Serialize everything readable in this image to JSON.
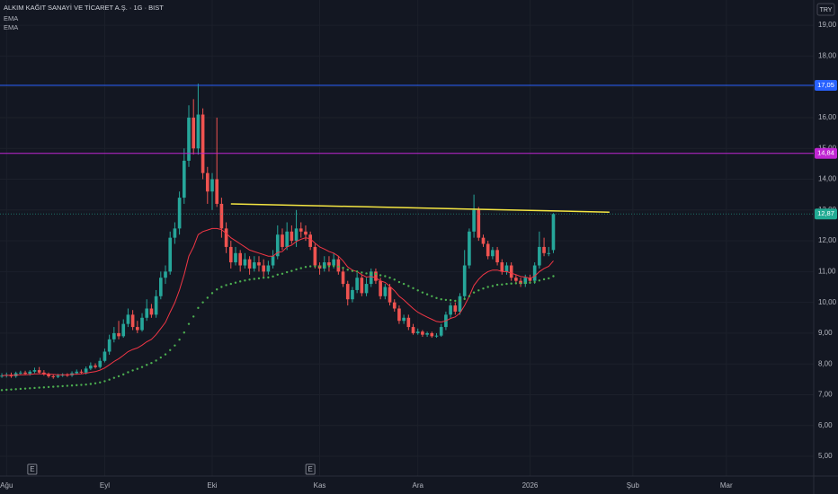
{
  "chart_data": {
    "type": "candlestick",
    "title": "ALKIM KAĞIT SANAYİ VE TİCARET A.Ş. · 1G · BIST",
    "currency": "TRY",
    "up_color": "#26a69a",
    "down_color": "#ef5350",
    "candles": {
      "open": [
        7.6,
        7.62,
        7.65,
        7.6,
        7.7,
        7.72,
        7.68,
        7.75,
        7.8,
        7.72,
        7.66,
        7.6,
        7.58,
        7.62,
        7.65,
        7.63,
        7.7,
        7.75,
        7.72,
        7.85,
        7.95,
        7.9,
        8.1,
        8.4,
        8.8,
        9.0,
        8.9,
        9.3,
        9.6,
        9.2,
        9.1,
        9.5,
        9.8,
        9.6,
        10.2,
        10.8,
        11.0,
        12.1,
        12.4,
        13.4,
        14.6,
        16.0,
        15.0,
        16.1,
        14.2,
        13.6,
        14.0,
        13.2,
        12.4,
        11.8,
        11.3,
        11.6,
        11.2,
        11.4,
        11.1,
        11.3,
        11.2,
        11.0,
        11.2,
        11.5,
        12.2,
        11.8,
        12.3,
        12.0,
        12.4,
        12.3,
        12.2,
        11.8,
        11.2,
        11.1,
        11.3,
        11.2,
        11.4,
        11.0,
        10.6,
        10.1,
        10.4,
        10.8,
        10.3,
        10.6,
        11.0,
        10.7,
        10.2,
        10.5,
        10.0,
        9.8,
        9.4,
        9.5,
        9.2,
        9.0,
        9.05,
        8.95,
        9.0,
        8.9,
        8.92,
        9.2,
        9.6,
        9.9,
        9.7,
        10.2,
        11.2,
        12.3,
        13.0,
        12.1,
        11.9,
        11.5,
        11.7,
        11.3,
        11.0,
        11.2,
        10.8,
        10.7,
        10.6,
        10.8,
        10.7,
        11.2,
        11.8,
        11.6,
        11.7
      ],
      "high": [
        7.7,
        7.72,
        7.72,
        7.75,
        7.78,
        7.78,
        7.8,
        7.88,
        7.9,
        7.8,
        7.72,
        7.66,
        7.68,
        7.7,
        7.7,
        7.76,
        7.82,
        7.82,
        7.92,
        8.05,
        8.02,
        8.2,
        8.5,
        8.95,
        9.2,
        9.4,
        9.45,
        9.8,
        9.75,
        9.4,
        9.65,
        10.1,
        9.95,
        10.4,
        11.0,
        11.2,
        12.3,
        12.6,
        13.6,
        15.0,
        16.4,
        16.6,
        17.1,
        16.3,
        14.4,
        14.2,
        16.0,
        13.4,
        12.6,
        12.0,
        11.8,
        11.7,
        11.6,
        11.5,
        11.5,
        11.5,
        11.4,
        11.35,
        11.7,
        12.5,
        12.4,
        12.6,
        12.5,
        13.0,
        12.6,
        12.5,
        12.3,
        11.9,
        11.3,
        11.5,
        11.5,
        11.6,
        11.5,
        11.1,
        10.7,
        10.5,
        10.95,
        10.9,
        10.8,
        11.1,
        11.1,
        10.8,
        10.6,
        10.6,
        10.1,
        9.9,
        9.6,
        9.6,
        9.3,
        9.15,
        9.1,
        9.05,
        9.05,
        9.0,
        9.3,
        9.7,
        10.0,
        10.0,
        10.3,
        11.7,
        12.4,
        13.5,
        13.1,
        12.2,
        12.0,
        11.8,
        11.8,
        11.4,
        11.3,
        11.3,
        10.9,
        10.8,
        10.9,
        10.9,
        11.3,
        12.3,
        12.1,
        11.8,
        12.9
      ],
      "low": [
        7.55,
        7.56,
        7.55,
        7.55,
        7.65,
        7.64,
        7.62,
        7.7,
        7.68,
        7.62,
        7.55,
        7.52,
        7.54,
        7.58,
        7.58,
        7.58,
        7.65,
        7.68,
        7.66,
        7.8,
        7.85,
        7.85,
        8.05,
        8.3,
        8.7,
        8.8,
        8.85,
        9.2,
        9.1,
        9.0,
        9.05,
        9.4,
        9.5,
        9.5,
        10.1,
        10.6,
        10.9,
        11.9,
        12.2,
        13.2,
        14.4,
        14.8,
        14.8,
        14.0,
        13.2,
        13.0,
        13.1,
        12.1,
        11.6,
        11.1,
        11.2,
        11.0,
        11.1,
        10.9,
        11.0,
        11.0,
        10.8,
        10.9,
        11.1,
        11.4,
        11.7,
        11.7,
        11.9,
        11.8,
        12.1,
        12.0,
        11.7,
        11.1,
        10.9,
        11.0,
        11.0,
        11.1,
        10.9,
        10.5,
        9.9,
        10.0,
        10.3,
        10.2,
        10.2,
        10.5,
        10.6,
        10.1,
        10.1,
        9.9,
        9.7,
        9.3,
        9.3,
        9.1,
        8.95,
        8.95,
        8.88,
        8.88,
        8.85,
        8.85,
        8.88,
        9.1,
        9.5,
        9.6,
        9.6,
        10.1,
        11.1,
        12.1,
        12.0,
        11.8,
        11.4,
        11.4,
        11.2,
        10.9,
        10.9,
        10.7,
        10.6,
        10.5,
        10.5,
        10.6,
        10.6,
        11.1,
        11.5,
        11.5,
        11.6
      ],
      "close": [
        7.62,
        7.65,
        7.6,
        7.7,
        7.72,
        7.68,
        7.75,
        7.8,
        7.72,
        7.66,
        7.6,
        7.58,
        7.62,
        7.65,
        7.63,
        7.7,
        7.75,
        7.72,
        7.85,
        7.95,
        7.9,
        8.1,
        8.4,
        8.8,
        9.0,
        8.9,
        9.3,
        9.6,
        9.2,
        9.1,
        9.5,
        9.8,
        9.6,
        10.2,
        10.8,
        11.0,
        12.1,
        12.4,
        13.4,
        14.6,
        16.0,
        15.0,
        16.1,
        14.2,
        13.6,
        14.0,
        13.2,
        12.4,
        11.8,
        11.3,
        11.6,
        11.2,
        11.4,
        11.1,
        11.3,
        11.2,
        11.0,
        11.2,
        11.5,
        12.2,
        11.8,
        12.3,
        12.0,
        12.4,
        12.3,
        12.2,
        11.8,
        11.2,
        11.1,
        11.3,
        11.2,
        11.4,
        11.0,
        10.6,
        10.1,
        10.4,
        10.8,
        10.3,
        10.6,
        11.0,
        10.7,
        10.2,
        10.5,
        10.0,
        9.8,
        9.4,
        9.5,
        9.2,
        9.0,
        9.05,
        8.95,
        9.0,
        8.9,
        8.92,
        9.2,
        9.6,
        9.9,
        9.7,
        10.2,
        11.2,
        12.3,
        13.0,
        12.1,
        11.9,
        11.5,
        11.7,
        11.3,
        11.0,
        11.2,
        10.8,
        10.7,
        10.6,
        10.8,
        10.7,
        11.2,
        11.8,
        11.6,
        11.6,
        12.87
      ]
    },
    "series": [
      {
        "name": "EMA",
        "color": "#f23645",
        "style": "line",
        "values": [
          7.62,
          7.63,
          7.63,
          7.64,
          7.65,
          7.65,
          7.66,
          7.68,
          7.68,
          7.68,
          7.67,
          7.66,
          7.65,
          7.65,
          7.65,
          7.66,
          7.67,
          7.68,
          7.7,
          7.73,
          7.75,
          7.8,
          7.87,
          7.97,
          8.08,
          8.17,
          8.28,
          8.4,
          8.47,
          8.52,
          8.61,
          8.72,
          8.8,
          8.95,
          9.15,
          9.35,
          9.68,
          9.99,
          10.4,
          10.9,
          11.5,
          11.8,
          12.2,
          12.3,
          12.35,
          12.4,
          12.4,
          12.36,
          12.24,
          12.1,
          12.0,
          11.9,
          11.8,
          11.7,
          11.65,
          11.6,
          11.55,
          11.5,
          11.5,
          11.62,
          11.65,
          11.8,
          11.86,
          11.98,
          12.05,
          12.1,
          12.06,
          11.92,
          11.8,
          11.73,
          11.65,
          11.6,
          11.5,
          11.35,
          11.15,
          11.05,
          11.0,
          10.9,
          10.82,
          10.84,
          10.8,
          10.7,
          10.65,
          10.52,
          10.38,
          10.2,
          10.08,
          9.94,
          9.8,
          9.68,
          9.6,
          9.52,
          9.45,
          9.38,
          9.36,
          9.4,
          9.48,
          9.53,
          9.65,
          9.9,
          10.2,
          10.55,
          10.75,
          10.9,
          11.0,
          11.05,
          11.05,
          11.0,
          11.0,
          10.95,
          10.9,
          10.84,
          10.82,
          10.78,
          10.85,
          11.0,
          11.1,
          11.17,
          11.35
        ]
      },
      {
        "name": "EMA",
        "color": "#4caf50",
        "style": "dots",
        "values": [
          7.15,
          7.16,
          7.17,
          7.18,
          7.19,
          7.2,
          7.21,
          7.22,
          7.23,
          7.24,
          7.25,
          7.26,
          7.27,
          7.28,
          7.29,
          7.3,
          7.31,
          7.32,
          7.33,
          7.35,
          7.37,
          7.4,
          7.44,
          7.49,
          7.55,
          7.6,
          7.66,
          7.73,
          7.79,
          7.84,
          7.9,
          7.97,
          8.03,
          8.11,
          8.21,
          8.31,
          8.45,
          8.6,
          8.79,
          9.02,
          9.3,
          9.54,
          9.82,
          10.0,
          10.15,
          10.3,
          10.42,
          10.5,
          10.56,
          10.6,
          10.64,
          10.68,
          10.71,
          10.74,
          10.76,
          10.78,
          10.8,
          10.81,
          10.84,
          10.9,
          10.93,
          10.98,
          11.02,
          11.07,
          11.11,
          11.15,
          11.17,
          11.17,
          11.17,
          11.17,
          11.17,
          11.18,
          11.16,
          11.12,
          11.06,
          11.02,
          11.0,
          10.97,
          10.94,
          10.94,
          10.92,
          10.88,
          10.85,
          10.8,
          10.74,
          10.66,
          10.6,
          10.53,
          10.46,
          10.39,
          10.32,
          10.26,
          10.2,
          10.14,
          10.1,
          10.08,
          10.07,
          10.05,
          10.06,
          10.11,
          10.2,
          10.32,
          10.39,
          10.45,
          10.5,
          10.53,
          10.57,
          10.58,
          10.6,
          10.61,
          10.62,
          10.62,
          10.63,
          10.64,
          10.66,
          10.71,
          10.75,
          10.78,
          10.85
        ]
      }
    ],
    "price_lines": [
      {
        "value": 17.05,
        "label": "17,05",
        "color": "#2962ff"
      },
      {
        "value": 14.84,
        "label": "14,84",
        "color": "#c026d3"
      },
      {
        "value": 12.87,
        "label": "12,87",
        "color": "#22ab94"
      }
    ],
    "trendline": {
      "x": [
        49,
        130
      ],
      "y": [
        13.2,
        12.93
      ],
      "color": "#f5e642"
    },
    "events": [
      {
        "x": 6.5,
        "label": "E"
      },
      {
        "x": 66,
        "label": "E"
      }
    ],
    "xlim": [
      -0.4,
      173.7
    ],
    "ylim": [
      4.36,
      19.82
    ],
    "xticks": [
      {
        "value": 1,
        "label": "Ağu"
      },
      {
        "value": 22,
        "label": "Eyl"
      },
      {
        "value": 45,
        "label": "Eki"
      },
      {
        "value": 68,
        "label": "Kas"
      },
      {
        "value": 89,
        "label": "Ara"
      },
      {
        "value": 113,
        "label": "2026"
      },
      {
        "value": 135,
        "label": "Şub"
      },
      {
        "value": 155,
        "label": "Mar"
      }
    ],
    "yticks": [
      {
        "value": 5,
        "label": "5,00"
      },
      {
        "value": 6,
        "label": "6,00"
      },
      {
        "value": 7,
        "label": "7,00"
      },
      {
        "value": 8,
        "label": "8,00"
      },
      {
        "value": 9,
        "label": "9,00"
      },
      {
        "value": 10,
        "label": "10,00"
      },
      {
        "value": 11,
        "label": "11,00"
      },
      {
        "value": 12,
        "label": "12,00"
      },
      {
        "value": 13,
        "label": "13,00"
      },
      {
        "value": 14,
        "label": "14,00"
      },
      {
        "value": 15,
        "label": "15,00"
      },
      {
        "value": 16,
        "label": "16,00"
      },
      {
        "value": 17,
        "label": "17,00"
      },
      {
        "value": 18,
        "label": "18,00"
      },
      {
        "value": 19,
        "label": "19,00"
      }
    ],
    "grid": true
  }
}
